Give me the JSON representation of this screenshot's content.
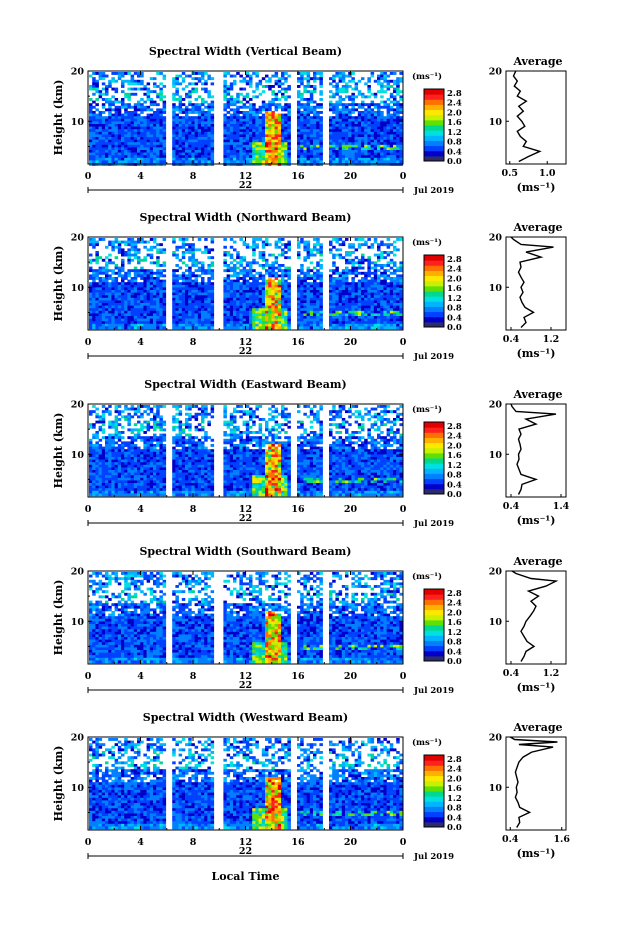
{
  "figure": {
    "x_title": "Local Time",
    "date_label": "Jul 2019",
    "day_label": "22",
    "unit_label": "(ms⁻¹)",
    "avg_title": "Average",
    "avg_unit": "(ms⁻¹)",
    "colors": [
      "#2b2b6e",
      "#0000c8",
      "#0040ff",
      "#0080ff",
      "#00b4ff",
      "#00e0e0",
      "#00d890",
      "#60e000",
      "#c8f000",
      "#ffe800",
      "#ffb000",
      "#ff7000",
      "#ff2020",
      "#e00000"
    ]
  },
  "chart_data": [
    {
      "type": "heatmap",
      "title": "Spectral Width (Vertical Beam)",
      "ylabel": "Height (km)",
      "x_ticks": [
        "0",
        "4",
        "8",
        "12",
        "16",
        "20",
        "0"
      ],
      "x_range": [
        0,
        24
      ],
      "y_ticks": [
        "20",
        "10"
      ],
      "y_range": [
        1.5,
        20
      ],
      "colorbar_ticks": [
        "2.8",
        "2.4",
        "2.0",
        "1.6",
        "1.2",
        "0.8",
        "0.4",
        "0.0"
      ],
      "average": {
        "x_ticks": [
          "0.5",
          "1.0"
        ],
        "x_range": [
          0.45,
          1.25
        ],
        "y_ticks": [
          "20",
          "10"
        ],
        "profile": [
          [
            0.62,
            2
          ],
          [
            0.75,
            3
          ],
          [
            0.9,
            4
          ],
          [
            0.68,
            5
          ],
          [
            0.72,
            6
          ],
          [
            0.64,
            7
          ],
          [
            0.6,
            8
          ],
          [
            0.7,
            9
          ],
          [
            0.66,
            10
          ],
          [
            0.6,
            11
          ],
          [
            0.68,
            12
          ],
          [
            0.62,
            13
          ],
          [
            0.72,
            14
          ],
          [
            0.6,
            15
          ],
          [
            0.64,
            16
          ],
          [
            0.56,
            17
          ],
          [
            0.6,
            18
          ],
          [
            0.55,
            19
          ],
          [
            0.58,
            20
          ]
        ]
      }
    },
    {
      "type": "heatmap",
      "title": "Spectral Width (Northward Beam)",
      "ylabel": "Height (km)",
      "x_ticks": [
        "0",
        "4",
        "8",
        "12",
        "16",
        "20",
        "0"
      ],
      "x_range": [
        0,
        24
      ],
      "y_ticks": [
        "20",
        "10"
      ],
      "y_range": [
        1.5,
        20
      ],
      "colorbar_ticks": [
        "2.8",
        "2.4",
        "2.0",
        "1.6",
        "1.2",
        "0.8",
        "0.4",
        "0.0"
      ],
      "average": {
        "x_ticks": [
          "0.4",
          "1.2"
        ],
        "x_range": [
          0.3,
          1.5
        ],
        "y_ticks": [
          "20",
          "10"
        ],
        "profile": [
          [
            0.6,
            2
          ],
          [
            0.7,
            3
          ],
          [
            0.66,
            4
          ],
          [
            0.85,
            5
          ],
          [
            0.68,
            6
          ],
          [
            0.62,
            7
          ],
          [
            0.58,
            8
          ],
          [
            0.64,
            9
          ],
          [
            0.6,
            10
          ],
          [
            0.66,
            11
          ],
          [
            0.6,
            12
          ],
          [
            0.55,
            13
          ],
          [
            0.6,
            14
          ],
          [
            0.58,
            15
          ],
          [
            1.0,
            16
          ],
          [
            0.7,
            17
          ],
          [
            1.25,
            18
          ],
          [
            0.6,
            18.5
          ],
          [
            0.45,
            19.5
          ],
          [
            0.4,
            20
          ]
        ]
      }
    },
    {
      "type": "heatmap",
      "title": "Spectral Width (Eastward Beam)",
      "ylabel": "Height (km)",
      "x_ticks": [
        "0",
        "4",
        "8",
        "12",
        "16",
        "20",
        "0"
      ],
      "x_range": [
        0,
        24
      ],
      "y_ticks": [
        "20",
        "10"
      ],
      "y_range": [
        1.5,
        20
      ],
      "colorbar_ticks": [
        "2.8",
        "2.4",
        "2.0",
        "1.6",
        "1.2",
        "0.8",
        "0.4",
        "0.0"
      ],
      "average": {
        "x_ticks": [
          "0.4",
          "1.4"
        ],
        "x_range": [
          0.3,
          1.5
        ],
        "y_ticks": [
          "20",
          "10"
        ],
        "profile": [
          [
            0.55,
            2
          ],
          [
            0.6,
            3
          ],
          [
            0.62,
            4
          ],
          [
            0.9,
            5
          ],
          [
            0.6,
            6
          ],
          [
            0.56,
            7
          ],
          [
            0.52,
            8
          ],
          [
            0.56,
            9
          ],
          [
            0.55,
            10
          ],
          [
            0.6,
            11
          ],
          [
            0.58,
            12
          ],
          [
            0.55,
            13
          ],
          [
            0.6,
            14
          ],
          [
            0.56,
            15
          ],
          [
            0.9,
            16
          ],
          [
            0.7,
            17
          ],
          [
            1.3,
            18
          ],
          [
            0.5,
            18.5
          ],
          [
            0.42,
            19.5
          ],
          [
            0.4,
            20
          ]
        ]
      }
    },
    {
      "type": "heatmap",
      "title": "Spectral Width (Southward Beam)",
      "ylabel": "Height (km)",
      "x_ticks": [
        "0",
        "4",
        "8",
        "12",
        "16",
        "20",
        "0"
      ],
      "x_range": [
        0,
        24
      ],
      "y_ticks": [
        "20",
        "10"
      ],
      "y_range": [
        1.5,
        20
      ],
      "colorbar_ticks": [
        "2.8",
        "2.4",
        "2.0",
        "1.6",
        "1.2",
        "0.8",
        "0.4",
        "0.0"
      ],
      "average": {
        "x_ticks": [
          "0.4",
          "1.2"
        ],
        "x_range": [
          0.3,
          1.5
        ],
        "y_ticks": [
          "20",
          "10"
        ],
        "profile": [
          [
            0.6,
            2
          ],
          [
            0.66,
            3
          ],
          [
            0.7,
            4
          ],
          [
            0.86,
            5
          ],
          [
            0.72,
            6
          ],
          [
            0.66,
            7
          ],
          [
            0.6,
            8
          ],
          [
            0.66,
            9
          ],
          [
            0.7,
            10
          ],
          [
            0.78,
            11
          ],
          [
            0.85,
            12
          ],
          [
            0.9,
            13
          ],
          [
            0.8,
            14
          ],
          [
            0.95,
            15
          ],
          [
            0.75,
            16
          ],
          [
            1.1,
            17
          ],
          [
            1.3,
            18
          ],
          [
            0.8,
            18.5
          ],
          [
            0.5,
            19.5
          ],
          [
            0.42,
            20
          ]
        ]
      }
    },
    {
      "type": "heatmap",
      "title": "Spectral Width (Westward Beam)",
      "ylabel": "Height (km)",
      "x_ticks": [
        "0",
        "4",
        "8",
        "12",
        "16",
        "20",
        "0"
      ],
      "x_range": [
        0,
        24
      ],
      "y_ticks": [
        "20",
        "10"
      ],
      "y_range": [
        1.5,
        20
      ],
      "colorbar_ticks": [
        "2.8",
        "2.4",
        "2.0",
        "1.6",
        "1.2",
        "0.8",
        "0.4",
        "0.0"
      ],
      "average": {
        "x_ticks": [
          "0.4",
          "1.6"
        ],
        "x_range": [
          0.3,
          1.7
        ],
        "y_ticks": [
          "20",
          "10"
        ],
        "profile": [
          [
            0.55,
            2
          ],
          [
            0.62,
            3
          ],
          [
            0.6,
            4
          ],
          [
            0.85,
            5
          ],
          [
            0.62,
            6
          ],
          [
            0.58,
            7
          ],
          [
            0.52,
            8
          ],
          [
            0.56,
            9
          ],
          [
            0.54,
            10
          ],
          [
            0.58,
            11
          ],
          [
            0.55,
            12
          ],
          [
            0.52,
            13
          ],
          [
            0.56,
            14
          ],
          [
            0.6,
            15
          ],
          [
            0.7,
            16
          ],
          [
            0.9,
            17
          ],
          [
            1.4,
            18
          ],
          [
            0.6,
            18.5
          ],
          [
            1.5,
            19
          ],
          [
            0.5,
            19.5
          ],
          [
            0.4,
            20
          ]
        ]
      }
    }
  ]
}
